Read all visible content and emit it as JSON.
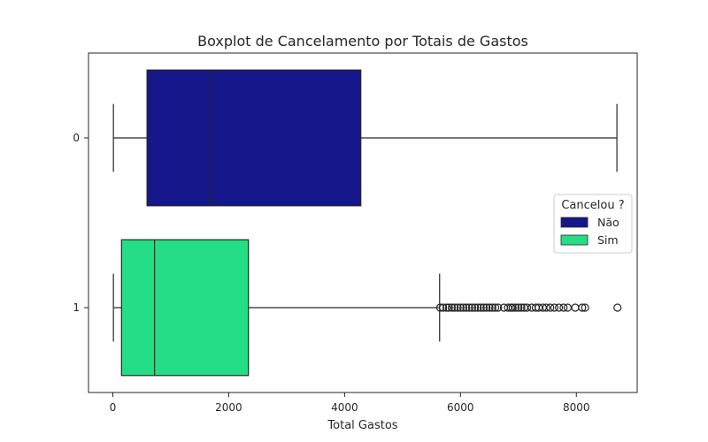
{
  "chart_data": {
    "type": "boxplot",
    "orientation": "horizontal",
    "title": "Boxplot de Cancelamento por Totais de Gastos",
    "xlabel": "Total Gastos",
    "ylabel": "",
    "xlim": [
      -420,
      9050
    ],
    "xticks": [
      0,
      2000,
      4000,
      6000,
      8000
    ],
    "grid": false,
    "categories": [
      "0",
      "1"
    ],
    "series": [
      {
        "category": "0",
        "name": "Não",
        "color": "#15178a",
        "whisker_low": 10,
        "q1": 590,
        "median": 1680,
        "q3": 4280,
        "whisker_high": 8700,
        "outliers": []
      },
      {
        "category": "1",
        "name": "Sim",
        "color": "#23de85",
        "whisker_low": 10,
        "q1": 150,
        "median": 720,
        "q3": 2340,
        "whisker_high": 5640,
        "outliers": [
          5650,
          5700,
          5760,
          5800,
          5850,
          5900,
          5950,
          6000,
          6050,
          6100,
          6150,
          6200,
          6250,
          6300,
          6350,
          6400,
          6450,
          6500,
          6550,
          6600,
          6650,
          6750,
          6820,
          6870,
          6900,
          6950,
          7000,
          7050,
          7100,
          7150,
          7230,
          7300,
          7350,
          7420,
          7480,
          7550,
          7620,
          7700,
          7780,
          7850,
          7980,
          8100,
          8150,
          8710
        ]
      }
    ],
    "legend": {
      "title": "Cancelou ?",
      "placement": "center-right",
      "entries": [
        "Não",
        "Sim"
      ]
    }
  }
}
